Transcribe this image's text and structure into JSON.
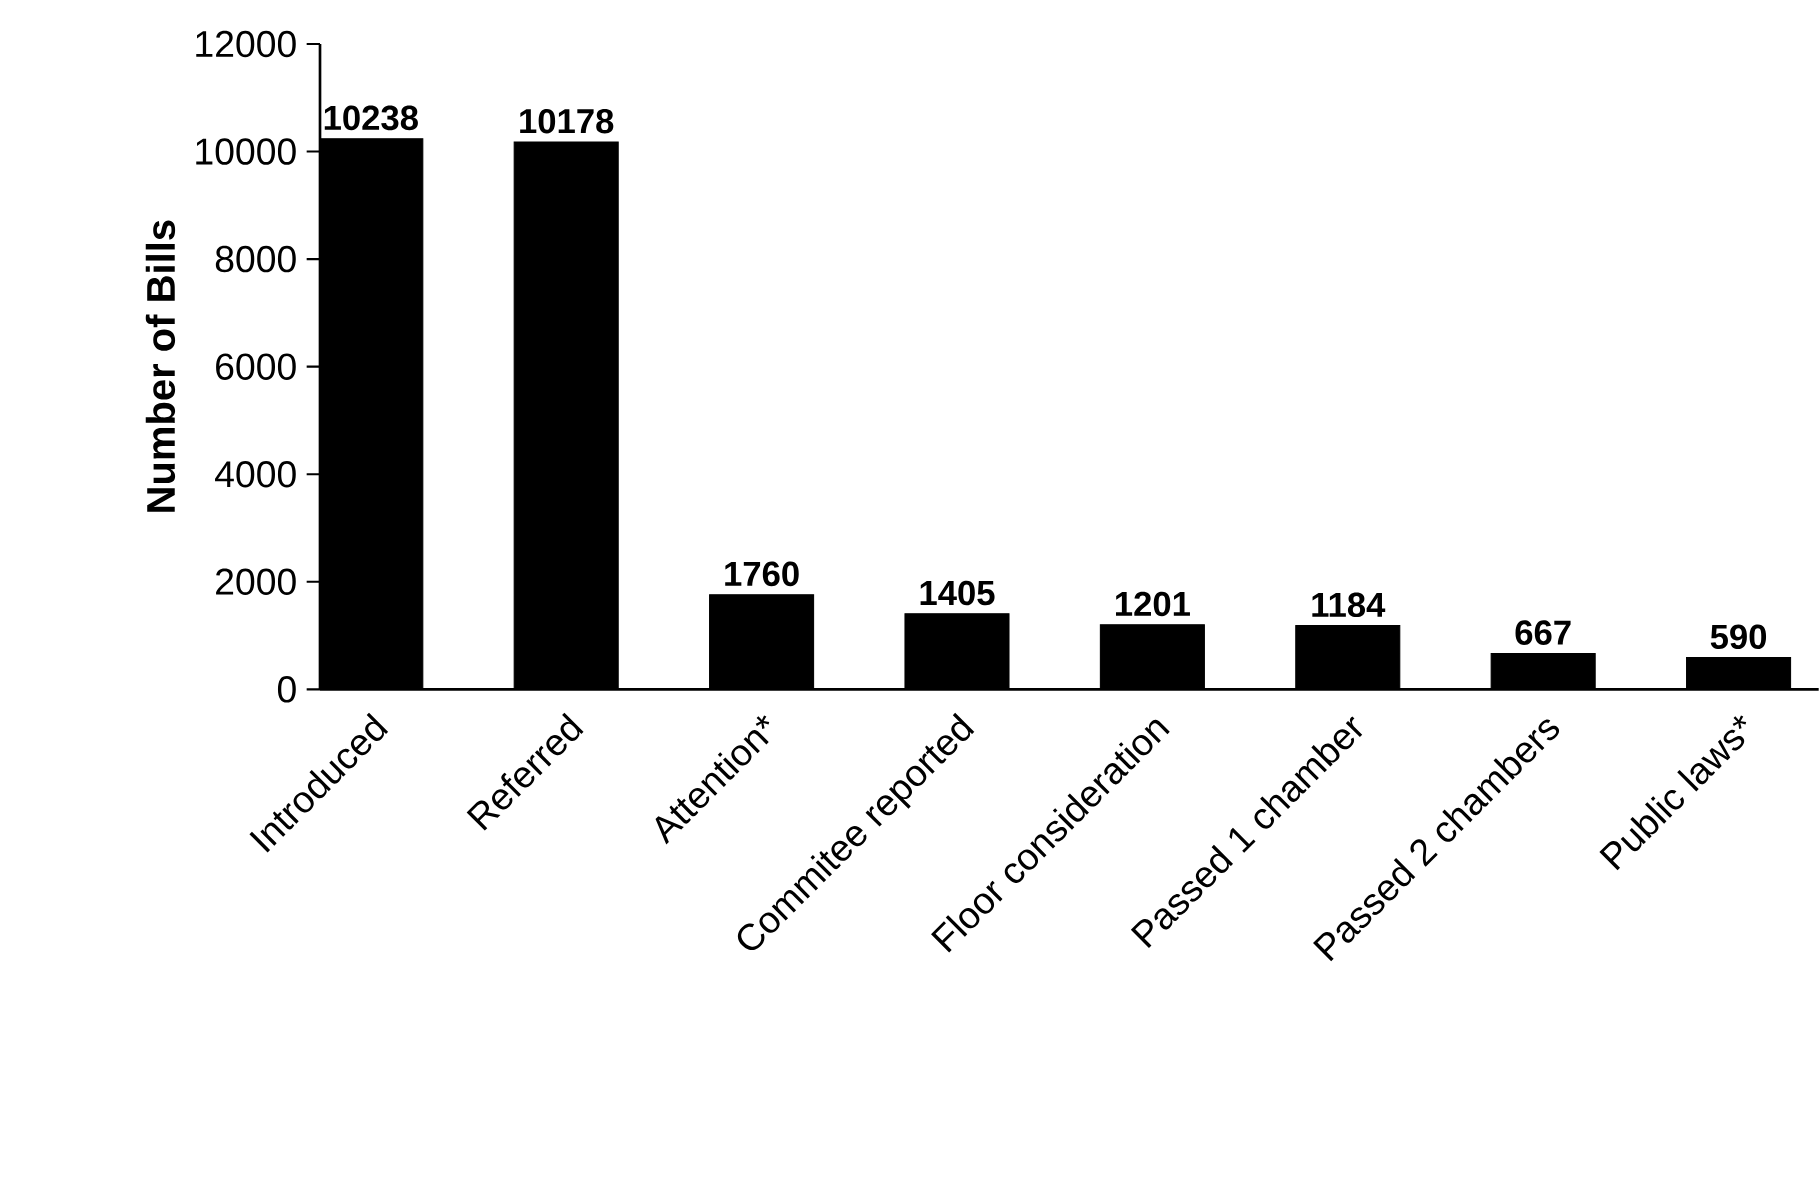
{
  "chart_data": {
    "type": "bar",
    "ylabel": "Number of Bills",
    "categories": [
      "Introduced",
      "Referred",
      "Attention*",
      "Commitee reported",
      "Floor consideration",
      "Passed 1 chamber",
      "Passed 2 chambers",
      "Public laws*"
    ],
    "values": [
      10238,
      10178,
      1760,
      1405,
      1201,
      1184,
      667,
      590
    ],
    "color": "#000000",
    "data_labels": true,
    "ylim": [
      0,
      12000
    ],
    "yticks": [
      0,
      2000,
      4000,
      6000,
      8000,
      10000,
      12000
    ]
  }
}
